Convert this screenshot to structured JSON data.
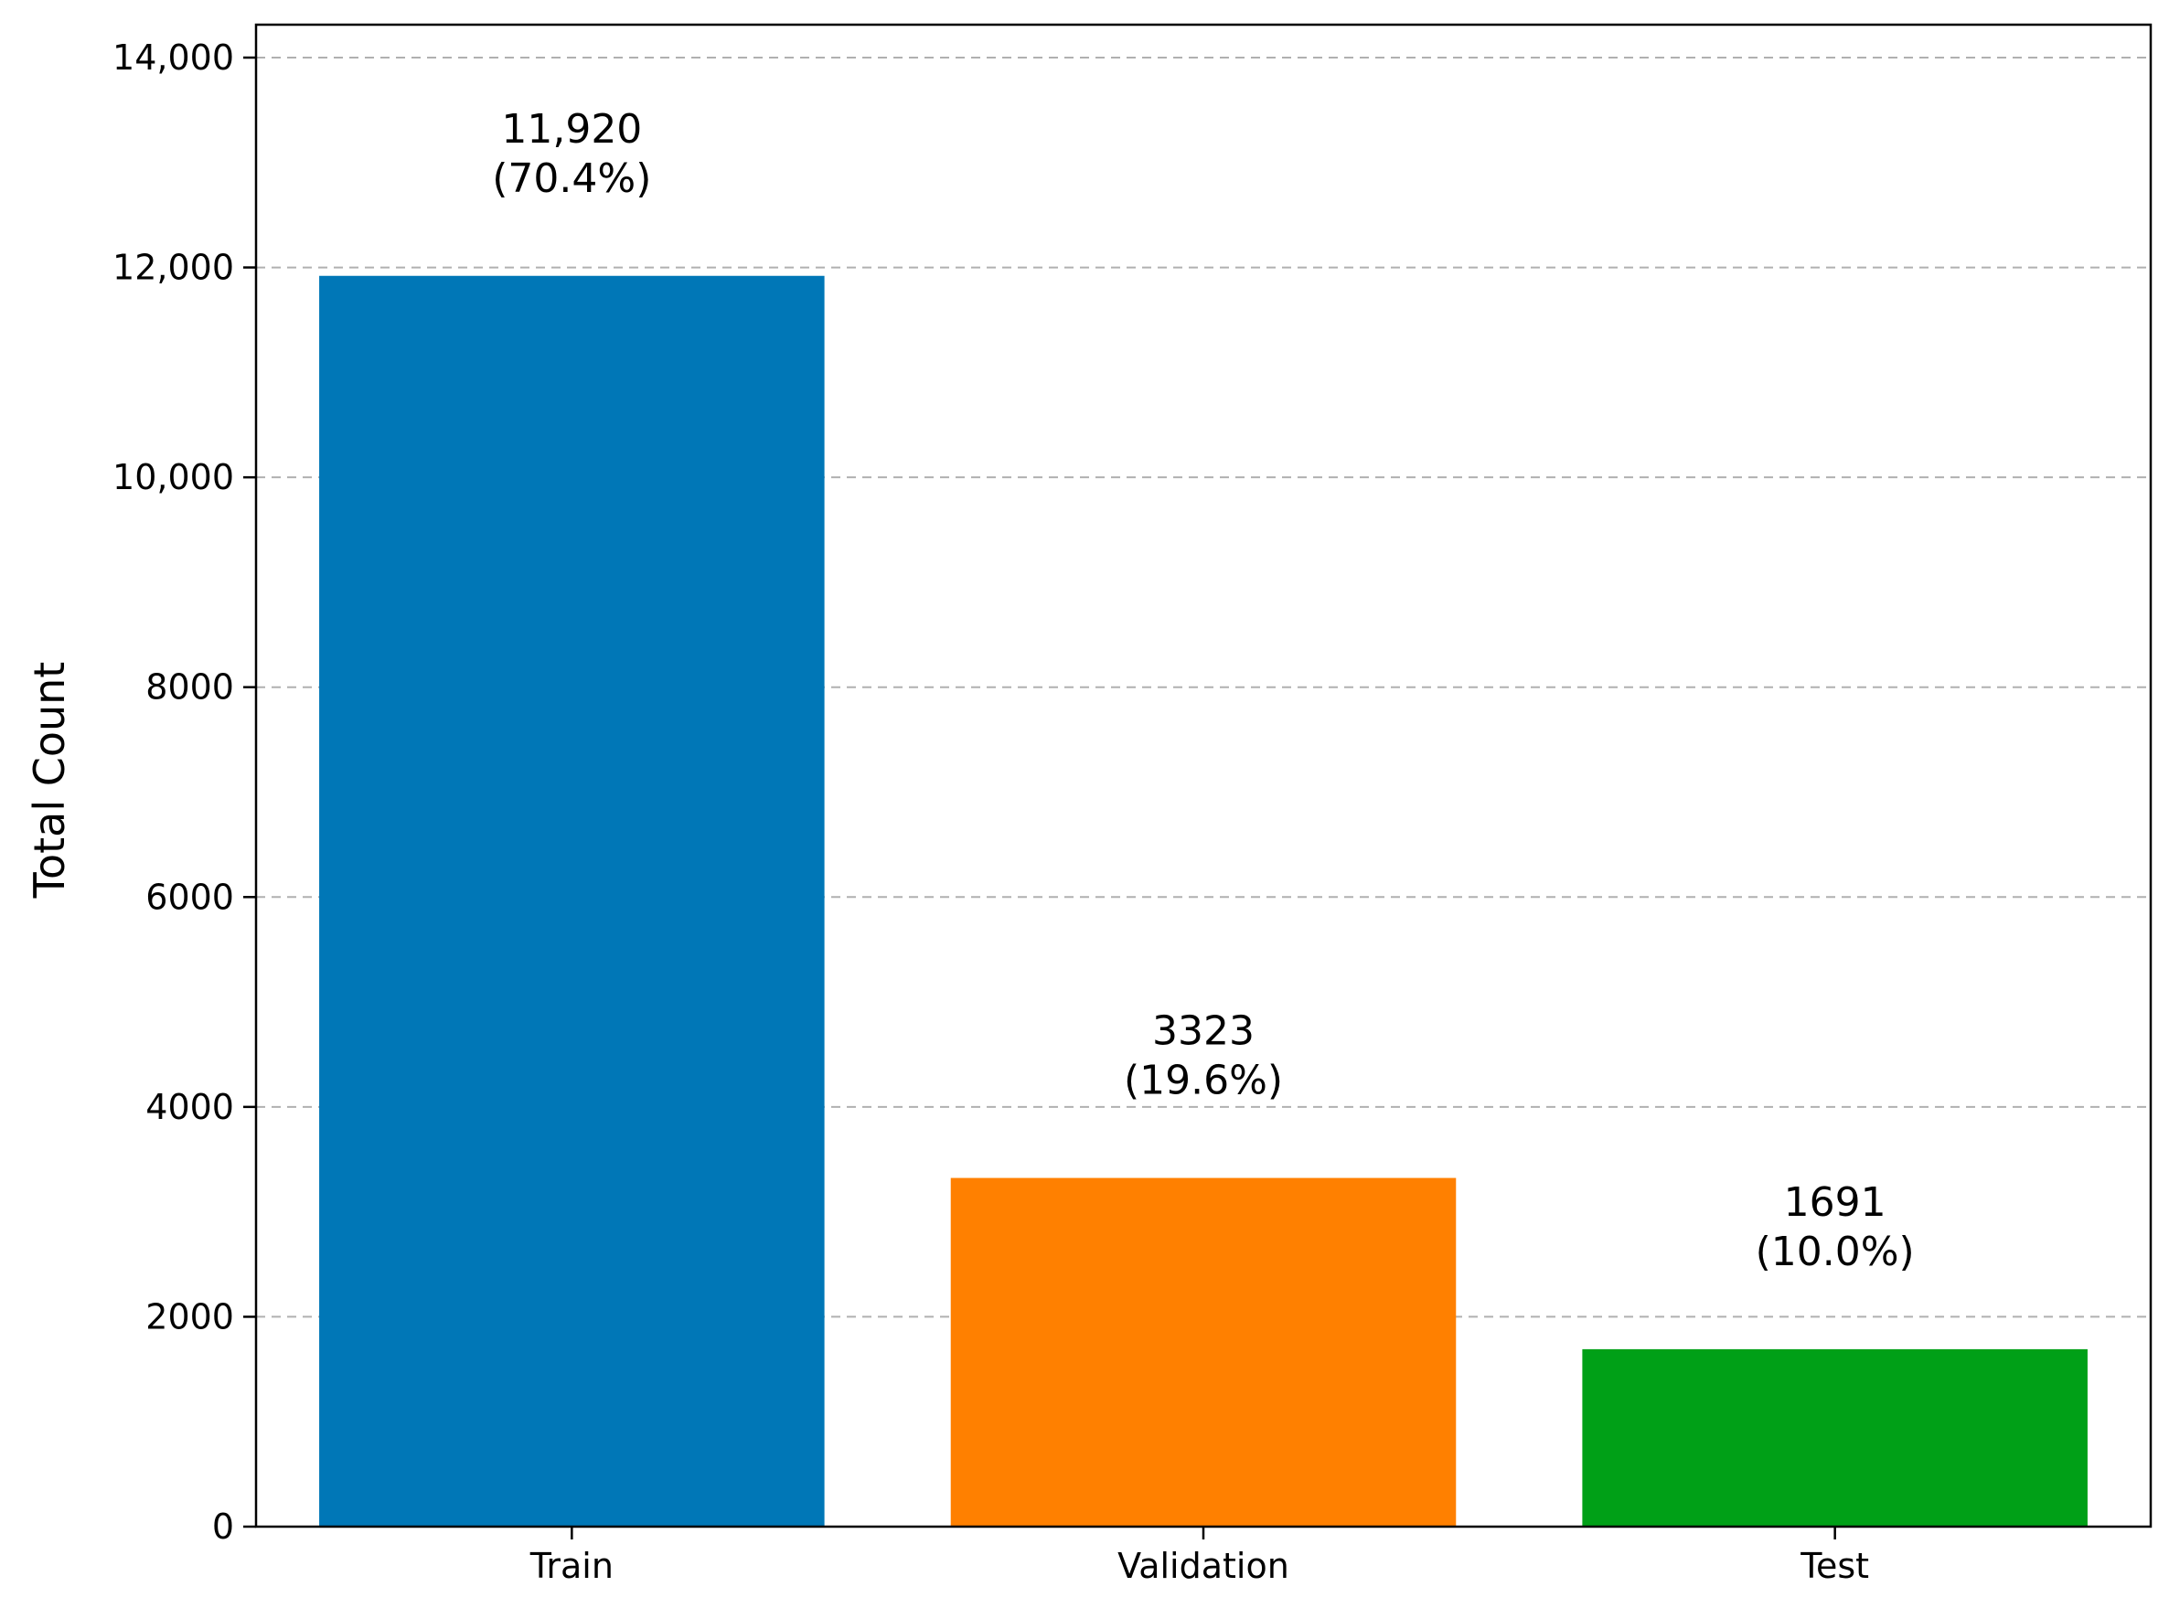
{
  "chart_data": {
    "type": "bar",
    "title": "",
    "xlabel": "",
    "ylabel": "Total Count",
    "ylim": [
      0,
      14000
    ],
    "y_ticks": [
      0,
      2000,
      4000,
      6000,
      8000,
      10000,
      12000,
      14000
    ],
    "y_tick_labels": [
      "0",
      "2000",
      "4000",
      "6000",
      "8000",
      "10,000",
      "12,000",
      "14,000"
    ],
    "grid": "horizontal dashed",
    "categories": [
      "Train",
      "Validation",
      "Test"
    ],
    "values": [
      11920,
      3323,
      1691
    ],
    "value_labels": [
      "11,920",
      "3323",
      "1691"
    ],
    "percent_labels": [
      "(70.4%)",
      "(19.6%)",
      "(10.0%)"
    ],
    "colors": [
      "#0077b7",
      "#ff8000",
      "#00a017"
    ]
  }
}
